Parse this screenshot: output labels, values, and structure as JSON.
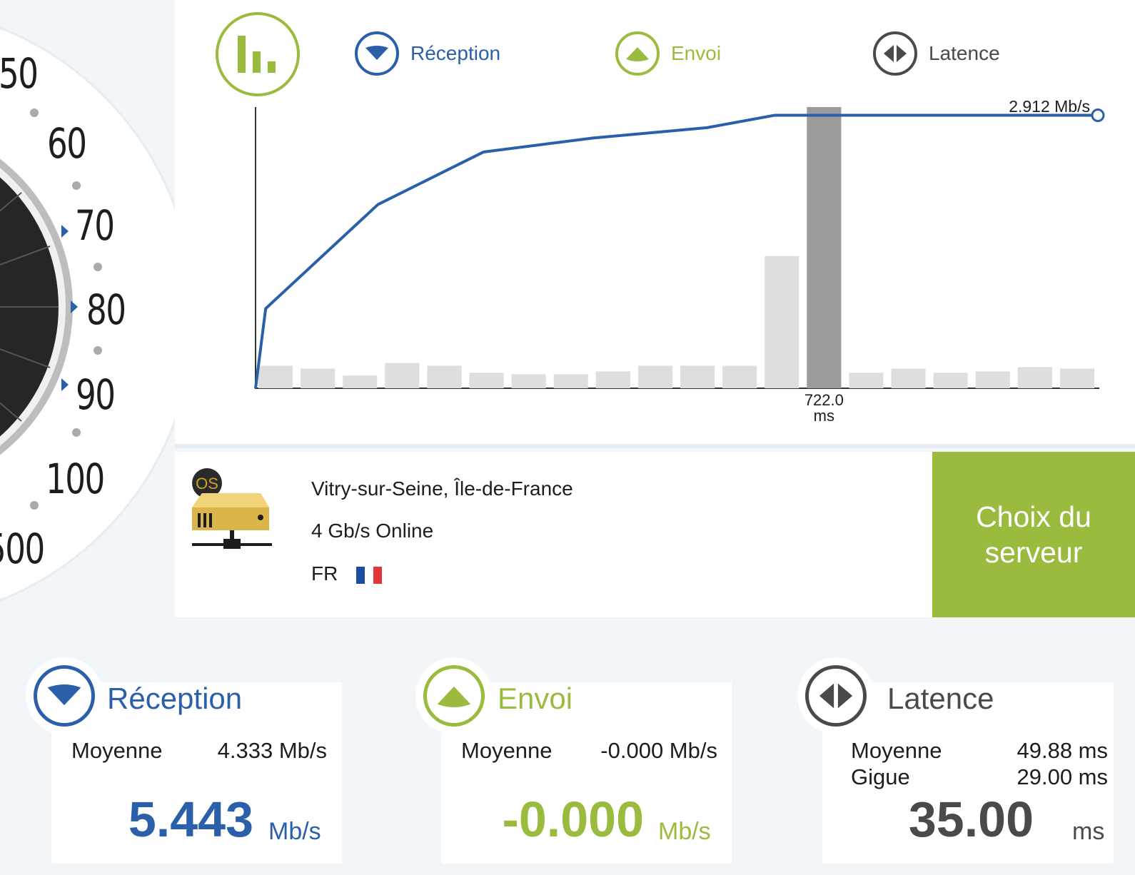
{
  "colors": {
    "reception": "#2b5faa",
    "envoi": "#9bbb3f",
    "latence": "#4a4a4a",
    "bar": "#dedede",
    "bar_active": "#9b9b9b"
  },
  "gauge": {
    "labels": [
      "50",
      "60",
      "70",
      "80",
      "90",
      "100",
      "500"
    ]
  },
  "legend": {
    "reception": {
      "label": "Réception",
      "icon": "triangle-down-icon"
    },
    "envoi": {
      "label": "Envoi",
      "icon": "triangle-up-icon"
    },
    "latence": {
      "label": "Latence",
      "icon": "left-right-icon"
    },
    "chart_button_icon": "bar-chart-icon"
  },
  "chart_data": {
    "type": "line",
    "series": [
      {
        "values": [
          0,
          0.85,
          1.96,
          2.52,
          2.67,
          2.78,
          2.912,
          2.912,
          2.912,
          2.912
        ]
      }
    ],
    "x": [
      0,
      1,
      2,
      3,
      4,
      5,
      6,
      7,
      8,
      9
    ],
    "last_value_label": "2.912 Mb/s",
    "latency_bars": [
      0.08,
      0.07,
      0.045,
      0.09,
      0.08,
      0.055,
      0.05,
      0.05,
      0.06,
      0.08,
      0.08,
      0.08,
      0.47,
      1.0,
      0.055,
      0.07,
      0.055,
      0.06,
      0.075,
      0.07
    ],
    "active_bar_index": 13,
    "active_bar_label_value": "722.0",
    "active_bar_label_unit": "ms",
    "ylim": [
      0,
      3.0
    ]
  },
  "server": {
    "location": "Vitry-sur-Seine, Île-de-France",
    "provider": "4 Gb/s Online",
    "country": "FR",
    "icon": "server-icon",
    "badge": "OS",
    "choose_label_line1": "Choix du",
    "choose_label_line2": "serveur"
  },
  "cards": {
    "reception": {
      "title": "Réception",
      "avg_label": "Moyenne",
      "avg_value": "4.333 Mb/s",
      "current": "5.443",
      "unit": "Mb/s"
    },
    "envoi": {
      "title": "Envoi",
      "avg_label": "Moyenne",
      "avg_value": "-0.000 Mb/s",
      "current": "-0.000",
      "unit": "Mb/s"
    },
    "latence": {
      "title": "Latence",
      "avg_label": "Moyenne",
      "avg_value": "49.88 ms",
      "jitter_label": "Gigue",
      "jitter_value": "29.00 ms",
      "current": "35.00",
      "unit": "ms"
    }
  }
}
